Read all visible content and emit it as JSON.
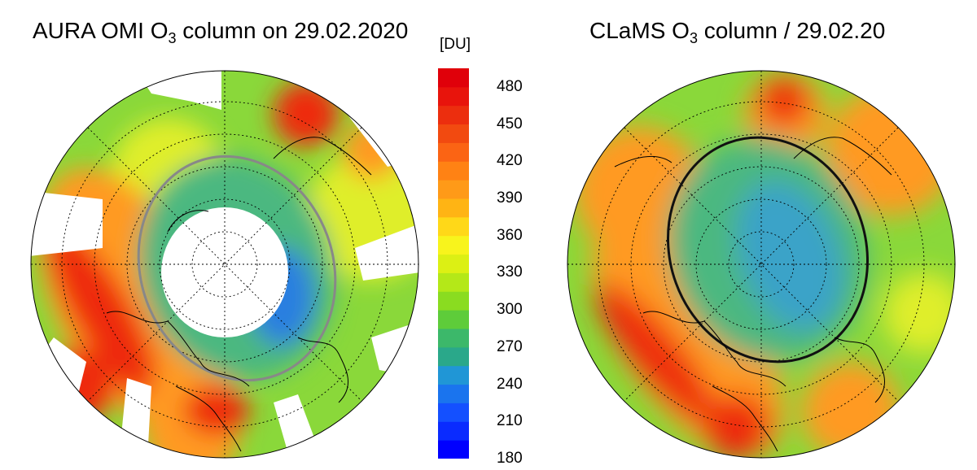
{
  "left_title": {
    "prefix": "AURA OMI O",
    "sub": "3",
    "suffix": " column on  29.02.2020"
  },
  "right_title": {
    "prefix": "CLaMS O",
    "sub": "3",
    "suffix": " column / 29.02.20"
  },
  "colorbar": {
    "unit": "[DU]",
    "ticks": [
      "480",
      "450",
      "420",
      "390",
      "360",
      "330",
      "300",
      "270",
      "240",
      "210",
      "180"
    ],
    "min": 180,
    "max": 495,
    "colors": [
      "#0000ff",
      "#0a2bff",
      "#1450ff",
      "#1a74ee",
      "#2096d6",
      "#2aa88a",
      "#3cb86a",
      "#5ecc3a",
      "#8adc20",
      "#b4e818",
      "#dcf014",
      "#f8f41c",
      "#ffd818",
      "#ffb414",
      "#ff9a18",
      "#ff8214",
      "#fb6414",
      "#f24a10",
      "#ec2e0e",
      "#e8140c",
      "#e0000a"
    ]
  },
  "map_palette": {
    "polar": "#3aa3c8",
    "deep": "#2a7fe0",
    "mid": "#4cb880",
    "green": "#8ad83a",
    "yellow": "#dfee2a",
    "orange": "#ff9a20",
    "red": "#ee2a10",
    "boundary_left": "#888888",
    "boundary_right": "#111111",
    "missing": "#ffffff"
  }
}
